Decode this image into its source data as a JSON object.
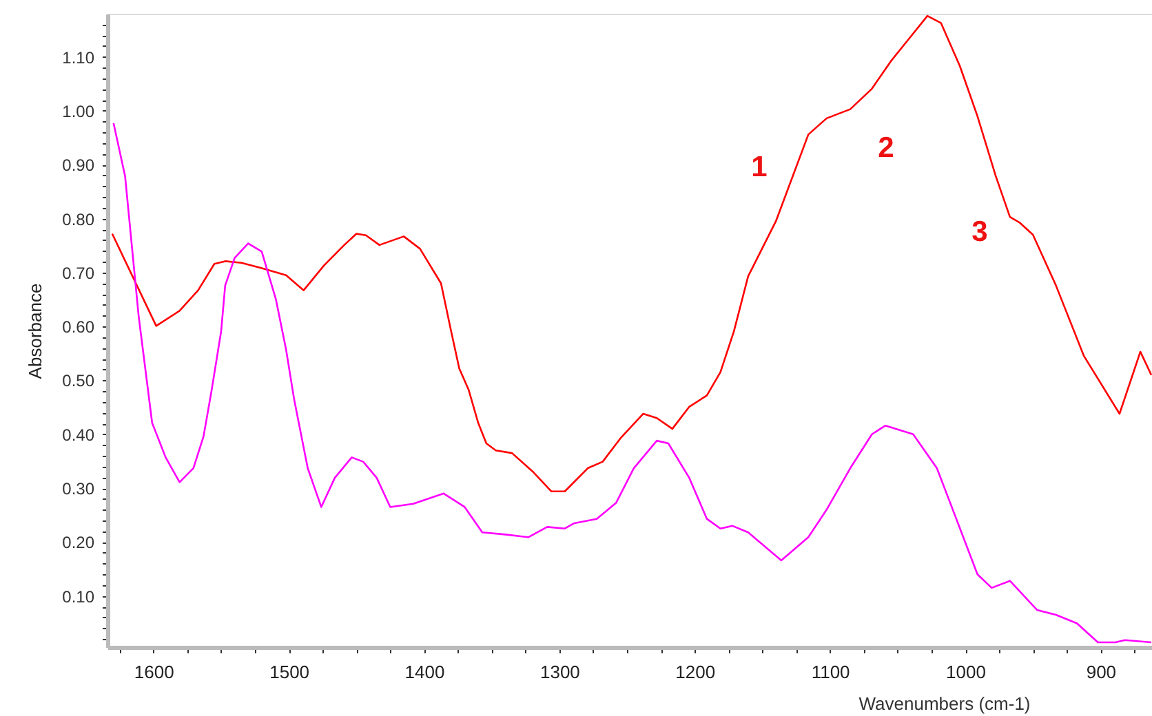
{
  "chart_data": {
    "type": "line",
    "xlabel": "Wavenumbers (cm-1)",
    "ylabel": "Absorbance",
    "xlim": [
      1634,
      862
    ],
    "ylim": [
      0.005,
      1.18
    ],
    "xticks": [
      {
        "value": 1625,
        "label": null
      },
      1600,
      {
        "value": 1575,
        "label": null
      },
      {
        "value": 1550,
        "label": null
      },
      {
        "value": 1525,
        "label": null
      },
      1500,
      {
        "value": 1475,
        "label": null
      },
      {
        "value": 1450,
        "label": null
      },
      {
        "value": 1425,
        "label": null
      },
      1400,
      {
        "value": 1375,
        "label": null
      },
      {
        "value": 1350,
        "label": null
      },
      {
        "value": 1325,
        "label": null
      },
      1300,
      {
        "value": 1275,
        "label": null
      },
      {
        "value": 1250,
        "label": null
      },
      {
        "value": 1225,
        "label": null
      },
      1200,
      {
        "value": 1175,
        "label": null
      },
      {
        "value": 1150,
        "label": null
      },
      {
        "value": 1125,
        "label": null
      },
      1100,
      {
        "value": 1075,
        "label": null
      },
      {
        "value": 1050,
        "label": null
      },
      {
        "value": 1025,
        "label": null
      },
      1000,
      {
        "value": 975,
        "label": null
      },
      {
        "value": 950,
        "label": null
      },
      {
        "value": 925,
        "label": null
      },
      900,
      {
        "value": 875,
        "label": null
      }
    ],
    "yticks": [
      {
        "value": 0.02,
        "label": null
      },
      {
        "value": 0.04,
        "label": null
      },
      {
        "value": 0.06,
        "label": null
      },
      {
        "value": 0.08,
        "label": null
      },
      {
        "value": 0.1,
        "label": "0.10"
      },
      {
        "value": 0.12,
        "label": null
      },
      {
        "value": 0.14,
        "label": null
      },
      {
        "value": 0.16,
        "label": null
      },
      {
        "value": 0.18,
        "label": null
      },
      {
        "value": 0.2,
        "label": "0.20"
      },
      {
        "value": 0.22,
        "label": null
      },
      {
        "value": 0.24,
        "label": null
      },
      {
        "value": 0.26,
        "label": null
      },
      {
        "value": 0.28,
        "label": null
      },
      {
        "value": 0.3,
        "label": "0.30"
      },
      {
        "value": 0.32,
        "label": null
      },
      {
        "value": 0.34,
        "label": null
      },
      {
        "value": 0.36,
        "label": null
      },
      {
        "value": 0.38,
        "label": null
      },
      {
        "value": 0.4,
        "label": "0.40"
      },
      {
        "value": 0.42,
        "label": null
      },
      {
        "value": 0.44,
        "label": null
      },
      {
        "value": 0.46,
        "label": null
      },
      {
        "value": 0.48,
        "label": null
      },
      {
        "value": 0.5,
        "label": "0.50"
      },
      {
        "value": 0.52,
        "label": null
      },
      {
        "value": 0.54,
        "label": null
      },
      {
        "value": 0.56,
        "label": null
      },
      {
        "value": 0.58,
        "label": null
      },
      {
        "value": 0.6,
        "label": "0.60"
      },
      {
        "value": 0.62,
        "label": null
      },
      {
        "value": 0.64,
        "label": null
      },
      {
        "value": 0.66,
        "label": null
      },
      {
        "value": 0.68,
        "label": null
      },
      {
        "value": 0.7,
        "label": "0.70"
      },
      {
        "value": 0.72,
        "label": null
      },
      {
        "value": 0.74,
        "label": null
      },
      {
        "value": 0.76,
        "label": null
      },
      {
        "value": 0.78,
        "label": null
      },
      {
        "value": 0.8,
        "label": "0.80"
      },
      {
        "value": 0.82,
        "label": null
      },
      {
        "value": 0.84,
        "label": null
      },
      {
        "value": 0.86,
        "label": null
      },
      {
        "value": 0.88,
        "label": null
      },
      {
        "value": 0.9,
        "label": "0.90"
      },
      {
        "value": 0.92,
        "label": null
      },
      {
        "value": 0.94,
        "label": null
      },
      {
        "value": 0.96,
        "label": null
      },
      {
        "value": 0.98,
        "label": null
      },
      {
        "value": 1.0,
        "label": "1.00"
      },
      {
        "value": 1.02,
        "label": null
      },
      {
        "value": 1.04,
        "label": null
      },
      {
        "value": 1.06,
        "label": null
      },
      {
        "value": 1.08,
        "label": null
      },
      {
        "value": 1.1,
        "label": "1.10"
      },
      {
        "value": 1.12,
        "label": null
      },
      {
        "value": 1.14,
        "label": null
      },
      {
        "value": 1.16,
        "label": null
      }
    ],
    "grid": false,
    "marker": "none",
    "line_style": "solid",
    "series": [
      {
        "color": "#ff0000",
        "x": [
          1630.5,
          1598,
          1580.7,
          1567,
          1555,
          1547,
          1535,
          1520,
          1502,
          1489,
          1474,
          1459,
          1450,
          1443,
          1433,
          1415,
          1403,
          1387.5,
          1380,
          1374,
          1367,
          1360,
          1354,
          1347,
          1335,
          1319,
          1306,
          1296,
          1279,
          1268,
          1255,
          1238,
          1228,
          1216.5,
          1204,
          1191,
          1181,
          1171,
          1160.5,
          1140,
          1116,
          1102.5,
          1085,
          1069,
          1055,
          1041.5,
          1028,
          1018,
          1004,
          991,
          977.5,
          967,
          960,
          950,
          933,
          912.3,
          886,
          870.6,
          862.5
        ],
        "values": [
          0.772,
          0.601,
          0.629,
          0.667,
          0.716,
          0.721,
          0.718,
          0.708,
          0.695,
          0.667,
          0.713,
          0.751,
          0.772,
          0.769,
          0.751,
          0.767,
          0.744,
          0.68,
          0.591,
          0.522,
          0.482,
          0.421,
          0.383,
          0.37,
          0.365,
          0.329,
          0.294,
          0.294,
          0.337,
          0.349,
          0.392,
          0.438,
          0.43,
          0.41,
          0.451,
          0.472,
          0.515,
          0.591,
          0.693,
          0.795,
          0.956,
          0.986,
          1.003,
          1.041,
          1.092,
          1.134,
          1.176,
          1.163,
          1.083,
          0.99,
          0.879,
          0.803,
          0.793,
          0.77,
          0.676,
          0.545,
          0.438,
          0.553,
          0.51
        ]
      },
      {
        "color": "#ff00ff",
        "x": [
          1629.5,
          1621,
          1611,
          1601,
          1591,
          1580.7,
          1570.5,
          1563,
          1557,
          1550,
          1547,
          1540,
          1530,
          1520,
          1509.5,
          1502,
          1496,
          1486,
          1476,
          1466,
          1453.5,
          1445,
          1435,
          1425,
          1408,
          1385.5,
          1370,
          1357,
          1340,
          1323,
          1309,
          1296,
          1289,
          1272.4,
          1258,
          1245,
          1228,
          1219.5,
          1204,
          1191,
          1181,
          1172,
          1160.5,
          1136,
          1116,
          1102.5,
          1085,
          1069,
          1059,
          1038.5,
          1021,
          1008,
          991,
          980.5,
          967,
          947,
          933,
          917.4,
          902,
          889,
          882,
          862.5
        ],
        "values": [
          0.977,
          0.879,
          0.62,
          0.421,
          0.357,
          0.311,
          0.337,
          0.396,
          0.482,
          0.591,
          0.676,
          0.727,
          0.754,
          0.739,
          0.65,
          0.557,
          0.464,
          0.337,
          0.265,
          0.319,
          0.357,
          0.349,
          0.319,
          0.265,
          0.271,
          0.29,
          0.265,
          0.218,
          0.214,
          0.209,
          0.228,
          0.225,
          0.235,
          0.243,
          0.273,
          0.337,
          0.388,
          0.383,
          0.319,
          0.243,
          0.225,
          0.23,
          0.218,
          0.166,
          0.209,
          0.26,
          0.337,
          0.4,
          0.416,
          0.4,
          0.337,
          0.252,
          0.14,
          0.115,
          0.128,
          0.074,
          0.065,
          0.049,
          0.014,
          0.014,
          0.018,
          0.014
        ]
      }
    ],
    "annotations": [
      "1",
      "2",
      "3"
    ]
  }
}
